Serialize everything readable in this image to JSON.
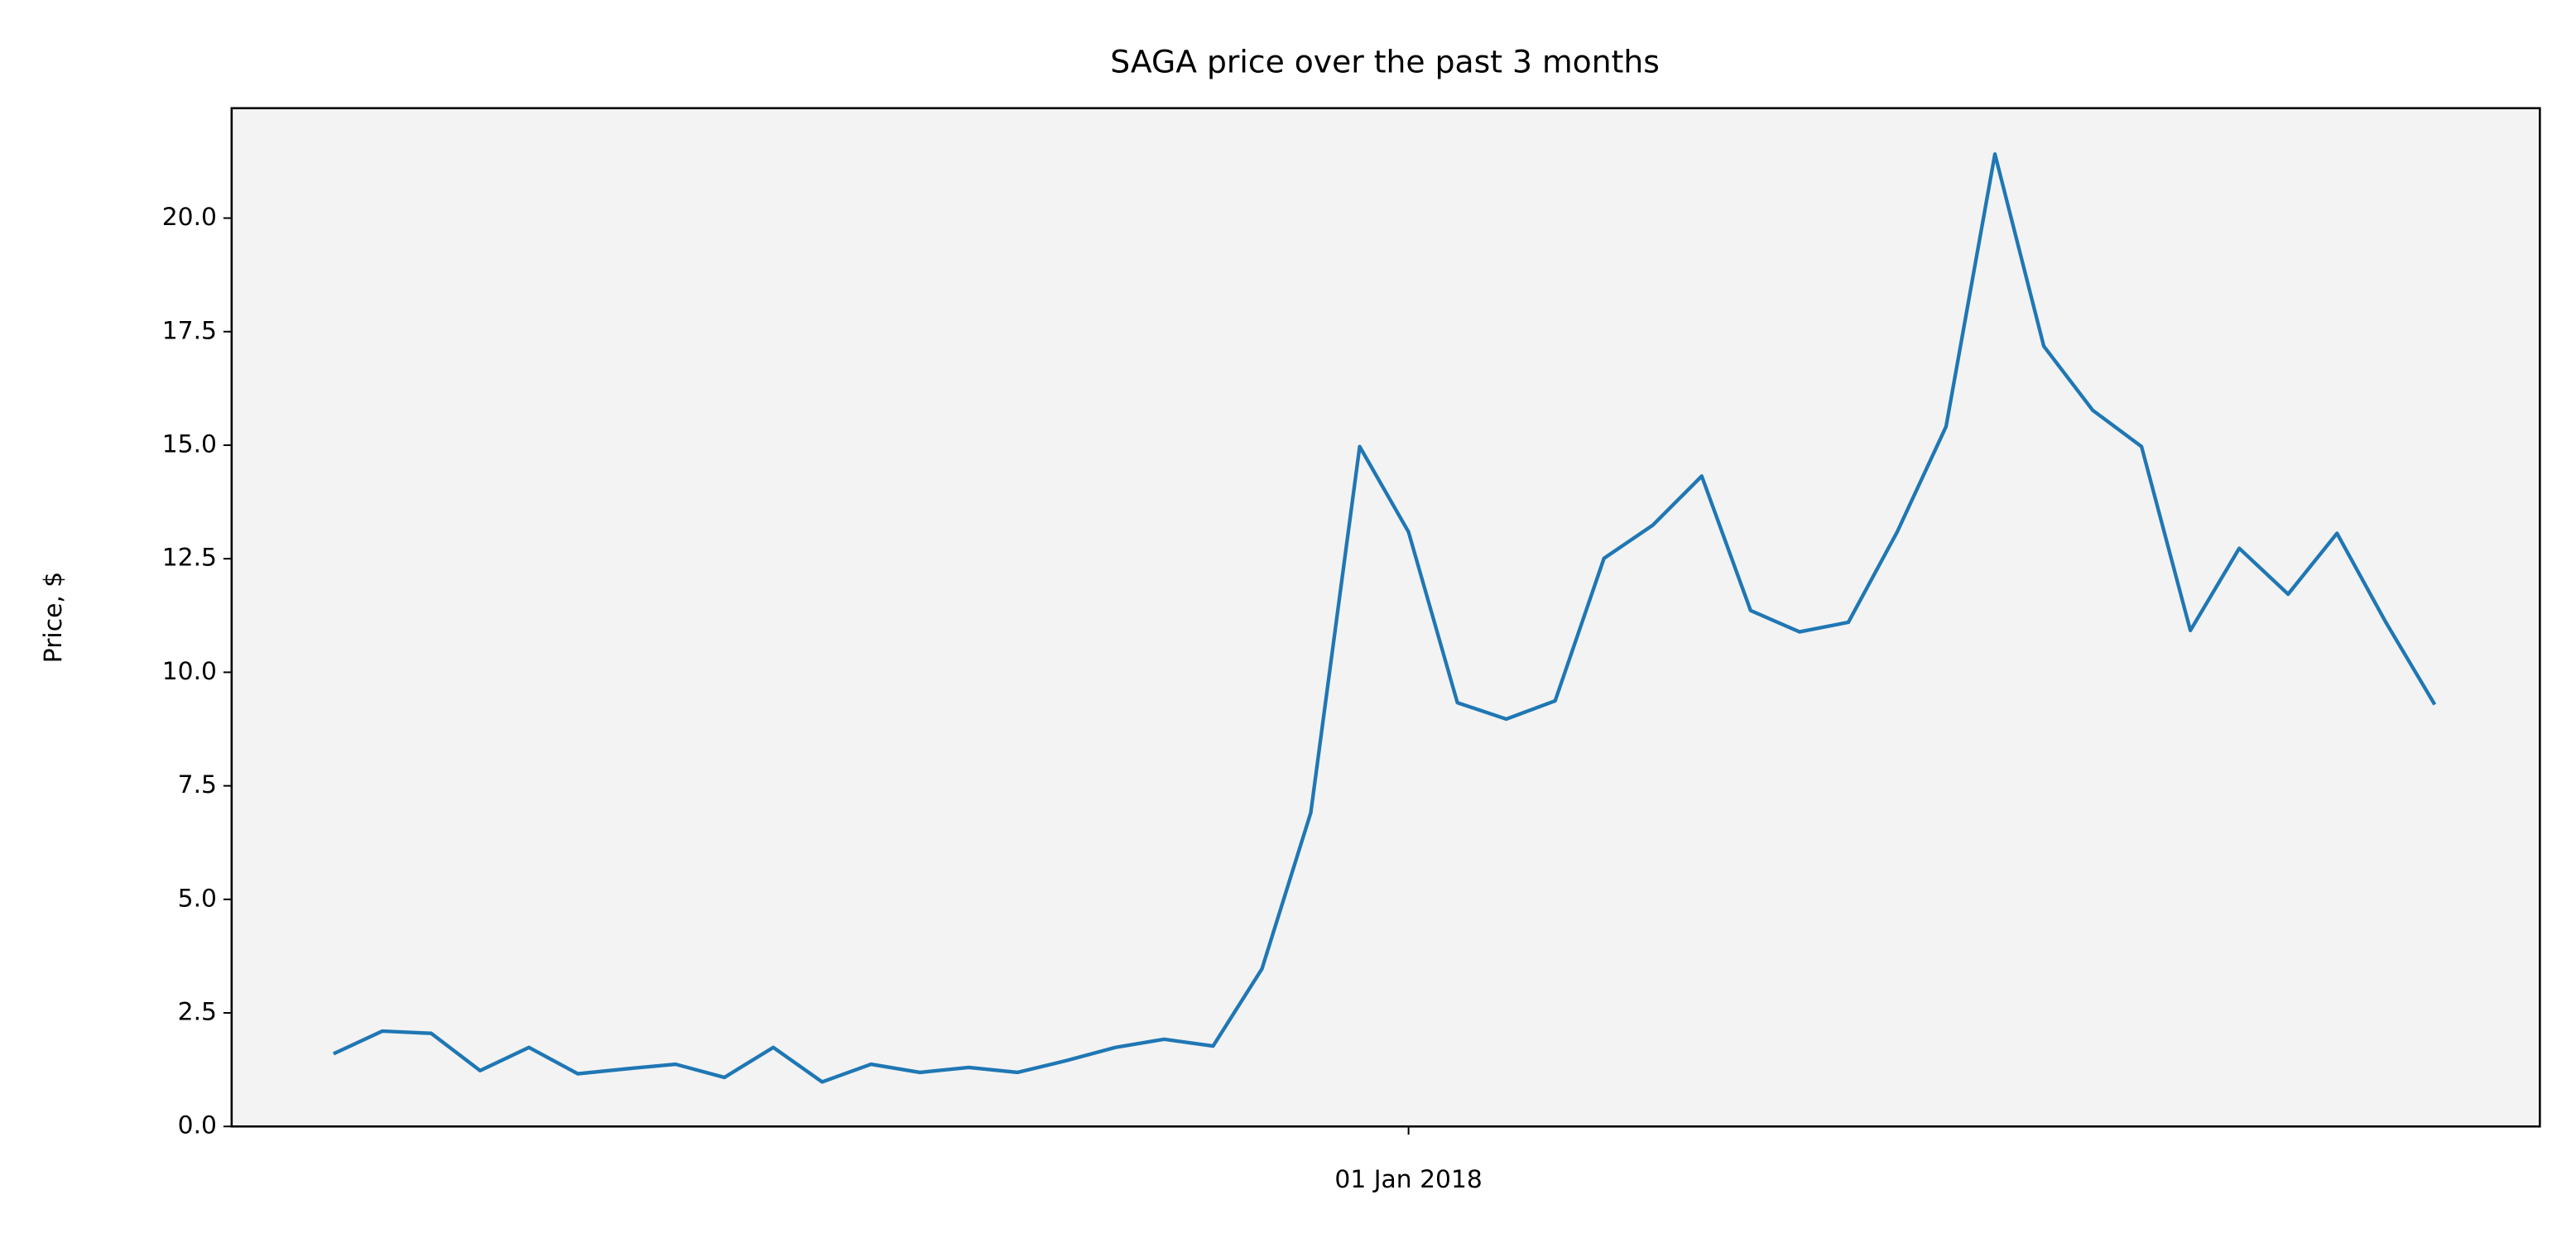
{
  "chart_data": {
    "type": "line",
    "title": "SAGA price over the past 3 months",
    "y_label": "Price, $",
    "categories": [
      null,
      null,
      null,
      null,
      null,
      null,
      null,
      null,
      null,
      null,
      null,
      null,
      null,
      null,
      null,
      null,
      null,
      null,
      null,
      null,
      null,
      null,
      "01 Jan 2018",
      null,
      null,
      null,
      null,
      null,
      null,
      null,
      null,
      null,
      null,
      null,
      null,
      null,
      null,
      null,
      null,
      null,
      null,
      null,
      null,
      null
    ],
    "series": [
      {
        "name": "SAGA",
        "color": "#1f77b4",
        "values": [
          1.6,
          2.1,
          2.05,
          1.23,
          1.74,
          1.16,
          1.27,
          1.37,
          1.08,
          1.74,
          0.98,
          1.37,
          1.19,
          1.3,
          1.19,
          1.45,
          1.74,
          1.92,
          1.77,
          3.47,
          6.91,
          14.97,
          13.09,
          9.33,
          8.97,
          9.37,
          12.51,
          13.24,
          14.32,
          11.36,
          10.89,
          11.1,
          13.09,
          15.41,
          21.41,
          17.18,
          15.77,
          14.97,
          10.92,
          12.73,
          11.72,
          13.06,
          11.1,
          9.29
        ]
      }
    ],
    "ylim": [
      0,
      22.42
    ],
    "yticks": [
      {
        "value": 0,
        "label": "0.0"
      },
      {
        "value": 2.5,
        "label": "2.5"
      },
      {
        "value": 5,
        "label": "5.0"
      },
      {
        "value": 7.5,
        "label": "7.5"
      },
      {
        "value": 10,
        "label": "10.0"
      },
      {
        "value": 12.5,
        "label": "12.5"
      },
      {
        "value": 15,
        "label": "15.0"
      },
      {
        "value": 17.5,
        "label": "17.5"
      },
      {
        "value": 20,
        "label": "20.0"
      }
    ],
    "background": "#f3f3f3"
  }
}
